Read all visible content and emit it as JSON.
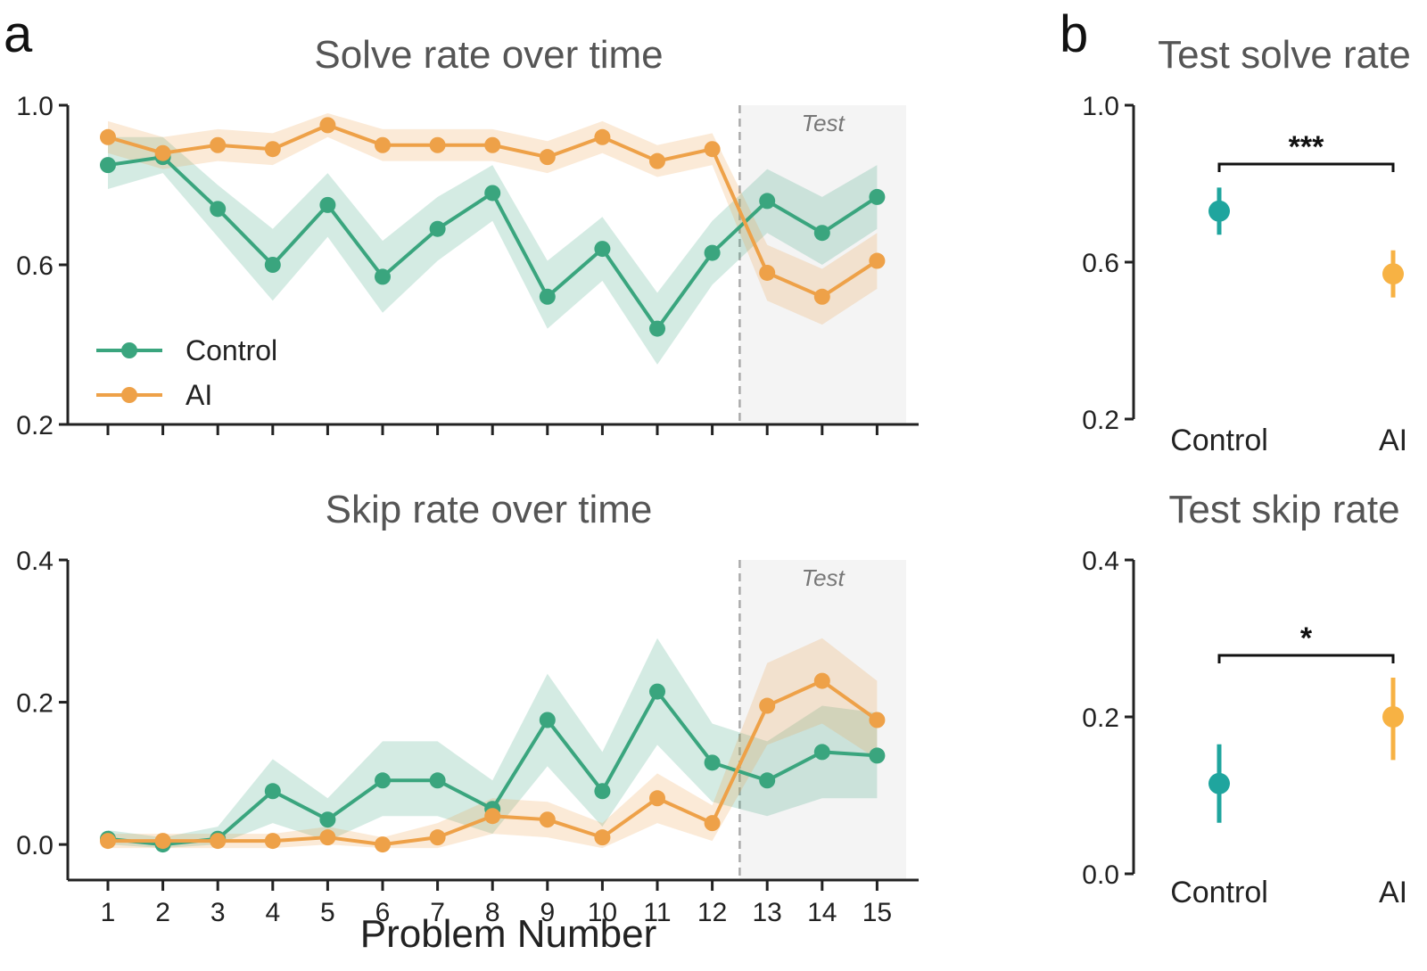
{
  "panels": {
    "a": "a",
    "b": "b"
  },
  "colors": {
    "control": "#3aa57e",
    "ai": "#eea148",
    "control_b": "#1fa59e",
    "ai_b": "#f7b244",
    "test_shade": "#f4f4f4",
    "divider": "#aaaaaa"
  },
  "test_region_label": "Test",
  "legend": [
    "Control",
    "AI"
  ],
  "xlabel": "Problem Number",
  "chart_data": [
    {
      "id": "solve",
      "type": "line",
      "title": "Solve rate over time",
      "xlabel": "Problem Number",
      "x": [
        1,
        2,
        3,
        4,
        5,
        6,
        7,
        8,
        9,
        10,
        11,
        12,
        13,
        14,
        15
      ],
      "ylim": [
        0.2,
        1.0
      ],
      "yticks": [
        0.2,
        0.6,
        1.0
      ],
      "ytick_labels": [
        "0.2",
        "0.6",
        "1.0"
      ],
      "test_boundary": 12.5,
      "test_label": "Test",
      "series": [
        {
          "name": "Control",
          "values": [
            0.85,
            0.87,
            0.74,
            0.6,
            0.75,
            0.57,
            0.69,
            0.78,
            0.52,
            0.64,
            0.44,
            0.63,
            0.76,
            0.68,
            0.77
          ],
          "lower": [
            0.79,
            0.83,
            0.67,
            0.51,
            0.67,
            0.48,
            0.61,
            0.71,
            0.44,
            0.56,
            0.35,
            0.55,
            0.68,
            0.6,
            0.69
          ],
          "upper": [
            0.92,
            0.92,
            0.8,
            0.69,
            0.83,
            0.66,
            0.77,
            0.85,
            0.61,
            0.72,
            0.53,
            0.71,
            0.84,
            0.77,
            0.85
          ]
        },
        {
          "name": "AI",
          "values": [
            0.92,
            0.88,
            0.9,
            0.89,
            0.95,
            0.9,
            0.9,
            0.9,
            0.87,
            0.92,
            0.86,
            0.89,
            0.58,
            0.52,
            0.61
          ],
          "lower": [
            0.88,
            0.84,
            0.86,
            0.85,
            0.92,
            0.86,
            0.86,
            0.86,
            0.83,
            0.88,
            0.82,
            0.85,
            0.51,
            0.45,
            0.54
          ],
          "upper": [
            0.96,
            0.92,
            0.94,
            0.93,
            0.98,
            0.94,
            0.94,
            0.94,
            0.91,
            0.96,
            0.9,
            0.93,
            0.65,
            0.59,
            0.68
          ]
        }
      ]
    },
    {
      "id": "skip",
      "type": "line",
      "title": "Skip rate over time",
      "xlabel": "Problem Number",
      "x": [
        1,
        2,
        3,
        4,
        5,
        6,
        7,
        8,
        9,
        10,
        11,
        12,
        13,
        14,
        15
      ],
      "xtick_labels": [
        "1",
        "2",
        "3",
        "4",
        "5",
        "6",
        "7",
        "8",
        "9",
        "10",
        "11",
        "12",
        "13",
        "14",
        "15"
      ],
      "ylim": [
        -0.05,
        0.4
      ],
      "yticks": [
        0.0,
        0.2,
        0.4
      ],
      "ytick_labels": [
        "0.0",
        "0.2",
        "0.4"
      ],
      "test_boundary": 12.5,
      "test_label": "Test",
      "series": [
        {
          "name": "Control",
          "values": [
            0.008,
            0.0,
            0.008,
            0.075,
            0.035,
            0.09,
            0.09,
            0.05,
            0.175,
            0.075,
            0.215,
            0.115,
            0.09,
            0.13,
            0.125
          ],
          "lower": [
            0.0,
            -0.005,
            0.0,
            0.03,
            0.005,
            0.04,
            0.04,
            0.015,
            0.11,
            0.025,
            0.14,
            0.06,
            0.04,
            0.065,
            0.065
          ],
          "upper": [
            0.02,
            0.01,
            0.025,
            0.12,
            0.065,
            0.145,
            0.145,
            0.09,
            0.24,
            0.13,
            0.29,
            0.17,
            0.145,
            0.195,
            0.185
          ]
        },
        {
          "name": "AI",
          "values": [
            0.005,
            0.005,
            0.005,
            0.005,
            0.01,
            0.0,
            0.01,
            0.04,
            0.035,
            0.01,
            0.065,
            0.03,
            0.195,
            0.23,
            0.175
          ],
          "lower": [
            -0.005,
            -0.005,
            -0.005,
            -0.005,
            0.0,
            -0.005,
            -0.005,
            0.015,
            0.01,
            -0.005,
            0.03,
            0.005,
            0.14,
            0.17,
            0.12
          ],
          "upper": [
            0.015,
            0.015,
            0.015,
            0.015,
            0.025,
            0.01,
            0.03,
            0.065,
            0.06,
            0.03,
            0.1,
            0.055,
            0.255,
            0.29,
            0.23
          ]
        }
      ]
    },
    {
      "id": "test_solve",
      "type": "scatter",
      "title": "Test solve rate",
      "categories": [
        "Control",
        "AI"
      ],
      "values": [
        0.73,
        0.57
      ],
      "lower": [
        0.67,
        0.51
      ],
      "upper": [
        0.79,
        0.63
      ],
      "ylim": [
        0.2,
        1.0
      ],
      "yticks": [
        0.2,
        0.6,
        1.0
      ],
      "ytick_labels": [
        "0.2",
        "0.6",
        "1.0"
      ],
      "significance": "***"
    },
    {
      "id": "test_skip",
      "type": "scatter",
      "title": "Test skip rate",
      "categories": [
        "Control",
        "AI"
      ],
      "values": [
        0.115,
        0.2
      ],
      "lower": [
        0.065,
        0.145
      ],
      "upper": [
        0.165,
        0.25
      ],
      "ylim": [
        0.0,
        0.4
      ],
      "yticks": [
        0.0,
        0.2,
        0.4
      ],
      "ytick_labels": [
        "0.0",
        "0.2",
        "0.4"
      ],
      "significance": "*"
    }
  ]
}
